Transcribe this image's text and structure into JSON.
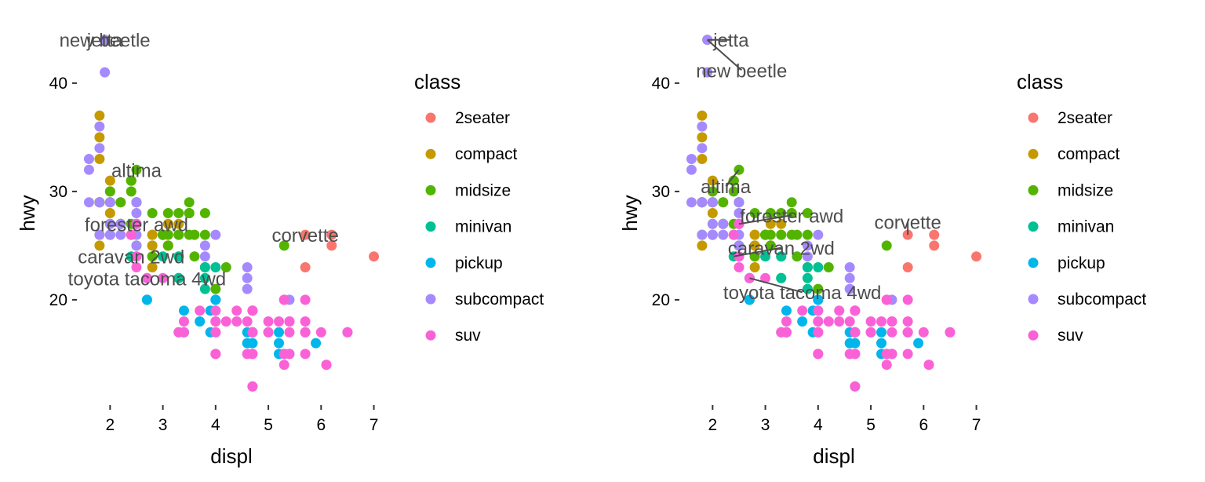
{
  "chart_data": [
    {
      "type": "scatter",
      "xlabel": "displ",
      "ylabel": "hwy",
      "xlim": [
        1.4,
        7.2
      ],
      "ylim": [
        10.5,
        45.5
      ],
      "x_ticks": [
        2,
        3,
        4,
        5,
        6,
        7
      ],
      "y_ticks": [
        20,
        30,
        40
      ],
      "legend_title": "class",
      "legend_position": "right",
      "grid": false,
      "series": [
        {
          "name": "2seater",
          "color": "#F8766D",
          "points": [
            [
              5.7,
              26
            ],
            [
              5.7,
              23
            ],
            [
              6.2,
              26
            ],
            [
              6.2,
              25
            ],
            [
              7.0,
              24
            ]
          ]
        },
        {
          "name": "compact",
          "color": "#C49A00",
          "points": [
            [
              1.8,
              29
            ],
            [
              1.8,
              29
            ],
            [
              2.0,
              31
            ],
            [
              2.0,
              30
            ],
            [
              2.8,
              26
            ],
            [
              2.8,
              26
            ],
            [
              3.1,
              27
            ],
            [
              1.8,
              26
            ],
            [
              1.8,
              25
            ],
            [
              2.0,
              28
            ],
            [
              2.0,
              27
            ],
            [
              2.8,
              25
            ],
            [
              2.8,
              25
            ],
            [
              3.1,
              25
            ],
            [
              3.1,
              25
            ],
            [
              2.2,
              27
            ],
            [
              2.2,
              29
            ],
            [
              2.4,
              31
            ],
            [
              2.4,
              31
            ],
            [
              3.0,
              26
            ],
            [
              3.0,
              26
            ],
            [
              3.3,
              27
            ],
            [
              1.8,
              29
            ],
            [
              1.8,
              29
            ],
            [
              1.8,
              37
            ],
            [
              1.8,
              35
            ],
            [
              1.8,
              33
            ],
            [
              2.0,
              29
            ],
            [
              2.0,
              29
            ],
            [
              2.8,
              24
            ],
            [
              2.8,
              23
            ],
            [
              1.9,
              44
            ],
            [
              2.0,
              29
            ],
            [
              2.0,
              26
            ],
            [
              2.5,
              29
            ],
            [
              2.5,
              27
            ]
          ]
        },
        {
          "name": "midsize",
          "color": "#53B400",
          "points": [
            [
              2.8,
              24
            ],
            [
              3.1,
              25
            ],
            [
              4.2,
              23
            ],
            [
              2.4,
              27
            ],
            [
              2.4,
              30
            ],
            [
              3.1,
              26
            ],
            [
              3.5,
              29
            ],
            [
              3.6,
              26
            ],
            [
              2.4,
              26
            ],
            [
              3.0,
              26
            ],
            [
              3.3,
              26
            ],
            [
              3.3,
              26
            ],
            [
              3.8,
              28
            ],
            [
              3.8,
              26
            ],
            [
              3.8,
              23
            ],
            [
              4.0,
              21
            ],
            [
              5.3,
              25
            ],
            [
              2.5,
              32
            ],
            [
              2.5,
              29
            ],
            [
              3.5,
              26
            ],
            [
              3.5,
              28
            ],
            [
              2.2,
              29
            ],
            [
              2.2,
              27
            ],
            [
              2.4,
              31
            ],
            [
              2.4,
              31
            ],
            [
              3.0,
              26
            ],
            [
              3.0,
              26
            ],
            [
              3.5,
              28
            ],
            [
              1.8,
              29
            ],
            [
              1.8,
              29
            ],
            [
              2.0,
              30
            ],
            [
              2.0,
              29
            ],
            [
              2.8,
              28
            ],
            [
              3.1,
              28
            ],
            [
              3.6,
              24
            ],
            [
              2.5,
              25
            ],
            [
              2.5,
              29
            ],
            [
              3.3,
              28
            ]
          ]
        },
        {
          "name": "minivan",
          "color": "#00C094",
          "points": [
            [
              2.4,
              24
            ],
            [
              3.0,
              24
            ],
            [
              3.3,
              22
            ],
            [
              3.3,
              22
            ],
            [
              3.3,
              24
            ],
            [
              3.3,
              24
            ],
            [
              3.8,
              22
            ],
            [
              3.8,
              21
            ],
            [
              4.0,
              23
            ],
            [
              3.3,
              17
            ],
            [
              3.8,
              23
            ]
          ]
        },
        {
          "name": "pickup",
          "color": "#00B6EB",
          "points": [
            [
              2.7,
              20
            ],
            [
              2.7,
              20
            ],
            [
              3.4,
              17
            ],
            [
              3.4,
              19
            ],
            [
              3.9,
              17
            ],
            [
              3.9,
              19
            ],
            [
              4.7,
              12
            ],
            [
              4.7,
              17
            ],
            [
              4.7,
              17
            ],
            [
              4.7,
              16
            ],
            [
              5.2,
              17
            ],
            [
              5.2,
              15
            ],
            [
              5.7,
              17
            ],
            [
              5.9,
              16
            ],
            [
              3.7,
              18
            ],
            [
              4.0,
              18
            ],
            [
              4.7,
              17
            ],
            [
              5.2,
              16
            ],
            [
              4.0,
              20
            ],
            [
              4.6,
              17
            ],
            [
              5.0,
              17
            ],
            [
              5.3,
              15
            ],
            [
              2.7,
              22
            ],
            [
              3.4,
              17
            ],
            [
              4.0,
              19
            ],
            [
              4.0,
              20
            ],
            [
              4.6,
              16
            ],
            [
              5.4,
              15
            ]
          ]
        },
        {
          "name": "subcompact",
          "color": "#A58AFF",
          "points": [
            [
              1.9,
              41
            ],
            [
              1.9,
              44
            ],
            [
              1.6,
              33
            ],
            [
              1.6,
              32
            ],
            [
              1.6,
              29
            ],
            [
              1.8,
              26
            ],
            [
              1.8,
              29
            ],
            [
              1.8,
              34
            ],
            [
              1.8,
              36
            ],
            [
              2.0,
              26
            ],
            [
              2.5,
              27
            ],
            [
              2.5,
              26
            ],
            [
              2.5,
              28
            ],
            [
              2.5,
              29
            ],
            [
              3.8,
              25
            ],
            [
              3.8,
              24
            ],
            [
              4.0,
              26
            ],
            [
              4.6,
              23
            ],
            [
              4.6,
              22
            ],
            [
              4.6,
              21
            ],
            [
              5.4,
              20
            ],
            [
              2.2,
              26
            ],
            [
              2.2,
              27
            ],
            [
              2.5,
              25
            ],
            [
              2.0,
              29
            ],
            [
              2.0,
              26
            ],
            [
              2.0,
              27
            ]
          ]
        },
        {
          "name": "suv",
          "color": "#FB61D7",
          "points": [
            [
              5.3,
              20
            ],
            [
              5.3,
              15
            ],
            [
              5.7,
              17
            ],
            [
              6.0,
              17
            ],
            [
              5.7,
              20
            ],
            [
              5.3,
              14
            ],
            [
              4.7,
              17
            ],
            [
              5.7,
              17
            ],
            [
              6.5,
              17
            ],
            [
              4.7,
              19
            ],
            [
              4.7,
              12
            ],
            [
              5.2,
              18
            ],
            [
              4.0,
              17
            ],
            [
              4.0,
              19
            ],
            [
              4.6,
              15
            ],
            [
              5.0,
              18
            ],
            [
              5.4,
              18
            ],
            [
              5.4,
              15
            ],
            [
              4.2,
              18
            ],
            [
              4.7,
              19
            ],
            [
              4.0,
              15
            ],
            [
              6.1,
              14
            ],
            [
              3.7,
              19
            ],
            [
              4.7,
              15
            ],
            [
              5.7,
              15
            ],
            [
              2.5,
              23
            ],
            [
              2.5,
              24
            ],
            [
              4.0,
              15
            ],
            [
              4.7,
              17
            ],
            [
              5.0,
              17
            ],
            [
              5.4,
              18
            ],
            [
              5.4,
              17
            ],
            [
              3.3,
              17
            ],
            [
              3.4,
              17
            ],
            [
              4.0,
              17
            ],
            [
              2.4,
              26
            ],
            [
              2.5,
              24
            ],
            [
              2.5,
              27
            ],
            [
              4.4,
              18
            ],
            [
              4.0,
              18
            ],
            [
              2.7,
              22
            ],
            [
              3.0,
              22
            ],
            [
              3.4,
              18
            ],
            [
              4.0,
              17
            ],
            [
              4.6,
              18
            ],
            [
              4.7,
              19
            ],
            [
              5.7,
              18
            ],
            [
              6.5,
              17
            ],
            [
              4.4,
              19
            ],
            [
              4.7,
              15
            ],
            [
              5.3,
              20
            ],
            [
              6.1,
              14
            ]
          ]
        }
      ],
      "annotations": [
        {
          "text": "jetta",
          "x": 1.9,
          "y": 44,
          "lx": 1.9,
          "ly": 44
        },
        {
          "text": "new beetle",
          "x": 1.9,
          "y": 44,
          "lx": 1.9,
          "ly": 44
        },
        {
          "text": "altima",
          "x": 2.5,
          "y": 32,
          "lx": 2.5,
          "ly": 32
        },
        {
          "text": "forester awd",
          "x": 2.5,
          "y": 27,
          "lx": 2.5,
          "ly": 27
        },
        {
          "text": "corvette",
          "x": 5.7,
          "y": 26,
          "lx": 5.7,
          "ly": 26
        },
        {
          "text": "caravan 2wd",
          "x": 2.4,
          "y": 24,
          "lx": 2.4,
          "ly": 24
        },
        {
          "text": "toyota tacoma 4wd",
          "x": 2.7,
          "y": 22,
          "lx": 2.7,
          "ly": 22
        }
      ]
    },
    {
      "type": "scatter",
      "xlabel": "displ",
      "ylabel": "hwy",
      "xlim": [
        1.4,
        7.2
      ],
      "ylim": [
        10.5,
        45.5
      ],
      "x_ticks": [
        2,
        3,
        4,
        5,
        6,
        7
      ],
      "y_ticks": [
        20,
        30,
        40
      ],
      "legend_title": "class",
      "legend_position": "right",
      "grid": false,
      "series_same_as_panel": 0,
      "annotations": [
        {
          "text": "jetta",
          "x": 1.9,
          "y": 44,
          "lx": 2.35,
          "ly": 44
        },
        {
          "text": "new beetle",
          "x": 1.9,
          "y": 44,
          "lx": 2.55,
          "ly": 41.2
        },
        {
          "text": "altima",
          "x": 2.5,
          "y": 32,
          "lx": 2.25,
          "ly": 30.5
        },
        {
          "text": "forester awd",
          "x": 2.5,
          "y": 27,
          "lx": 3.5,
          "ly": 27.8
        },
        {
          "text": "corvette",
          "x": 5.7,
          "y": 26,
          "lx": 5.7,
          "ly": 27.2
        },
        {
          "text": "caravan 2wd",
          "x": 2.4,
          "y": 24,
          "lx": 3.3,
          "ly": 24.8
        },
        {
          "text": "toyota tacoma 4wd",
          "x": 2.7,
          "y": 22,
          "lx": 3.7,
          "ly": 20.7
        }
      ]
    }
  ]
}
